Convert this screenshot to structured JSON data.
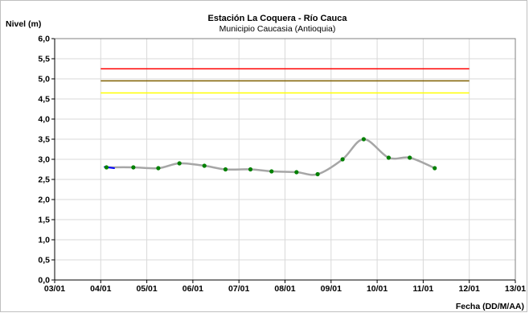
{
  "chart_data": {
    "type": "line",
    "title": "Estación La Coquera - Río Cauca",
    "subtitle": "Municipio Caucasia (Antioquia)",
    "ylabel": "Nivel (m)",
    "xlabel": "Fecha (DD/M/AA)",
    "ylim": [
      0,
      6
    ],
    "y_ticks": [
      "0,0",
      "0,5",
      "1,0",
      "1,5",
      "2,0",
      "2,5",
      "3,0",
      "3,5",
      "4,0",
      "4,5",
      "5,0",
      "5,5",
      "6,0"
    ],
    "x_ticks": [
      "03/01",
      "04/01",
      "05/01",
      "06/01",
      "07/01",
      "08/01",
      "09/01",
      "10/01",
      "11/01",
      "12/01",
      "13/01"
    ],
    "grid": true,
    "thresholds": [
      {
        "value": 5.25,
        "color": "#ff0000"
      },
      {
        "value": 4.95,
        "color": "#7f5f00"
      },
      {
        "value": 4.65,
        "color": "#ffff00"
      }
    ],
    "threshold_range": [
      "04/01",
      "12/01"
    ],
    "series": [
      {
        "color": "#a6a6a6",
        "marker_color": "#008000",
        "x": [
          "04/01 03:00",
          "04/01 17:00",
          "05/01 06:00",
          "05/01 17:00",
          "06/01 06:00",
          "06/01 17:00",
          "07/01 06:00",
          "07/01 17:00",
          "08/01 06:00",
          "08/01 17:00",
          "09/01 06:00",
          "09/01 17:00",
          "10/01 06:00",
          "10/01 17:00",
          "11/01 06:00"
        ],
        "values": [
          2.8,
          2.8,
          2.78,
          2.9,
          2.84,
          2.75,
          2.75,
          2.7,
          2.68,
          2.63,
          3.0,
          3.5,
          3.04,
          3.04,
          2.78
        ]
      },
      {
        "color": "#0000ff",
        "x": [
          "04/01 02:00",
          "04/01 07:00"
        ],
        "values": [
          2.81,
          2.78
        ]
      }
    ]
  }
}
